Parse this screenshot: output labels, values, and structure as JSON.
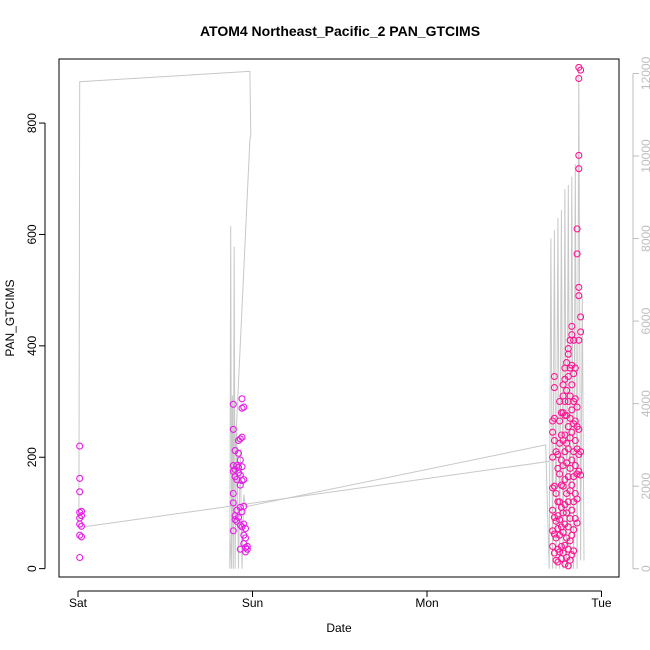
{
  "chart_data": {
    "type": "scatter",
    "title": "ATOM4 Northeast_Pacific_2 PAN_GTCIMS",
    "xlabel": "Date",
    "ylabel": "PAN_GTCIMS",
    "x_ticks": [
      "Sat",
      "Sun",
      "Mon",
      "Tue"
    ],
    "x_range_days": [
      0,
      3.08
    ],
    "ylim": [
      -15,
      915
    ],
    "y_ticks": [
      0,
      200,
      400,
      600,
      800
    ],
    "y2lim": [
      -200,
      12350
    ],
    "y2_ticks": [
      0,
      2000,
      4000,
      6000,
      8000,
      10000,
      12000
    ],
    "grid": false,
    "colors": {
      "points": "#ff1493",
      "points_alt": "#e61ee6",
      "line": "#c8c8c8"
    },
    "series": [
      {
        "kind": "points",
        "points": [
          [
            0.01,
            220
          ],
          [
            0.01,
            162
          ],
          [
            0.01,
            138
          ],
          [
            0.01,
            101
          ],
          [
            0.01,
            91
          ],
          [
            0.01,
            80
          ],
          [
            0.01,
            60
          ],
          [
            0.01,
            20
          ],
          [
            0.02,
            103
          ],
          [
            0.02,
            95
          ],
          [
            0.02,
            76
          ],
          [
            0.02,
            57
          ],
          [
            0.89,
            295
          ],
          [
            0.89,
            250
          ],
          [
            0.89,
            185
          ],
          [
            0.89,
            175
          ],
          [
            0.89,
            135
          ],
          [
            0.89,
            118
          ],
          [
            0.89,
            68
          ],
          [
            0.9,
            212
          ],
          [
            0.9,
            178
          ],
          [
            0.9,
            165
          ],
          [
            0.9,
            95
          ],
          [
            0.9,
            88
          ],
          [
            0.91,
            185
          ],
          [
            0.91,
            160
          ],
          [
            0.91,
            105
          ],
          [
            0.91,
            85
          ],
          [
            0.92,
            230
          ],
          [
            0.92,
            207
          ],
          [
            0.92,
            182
          ],
          [
            0.92,
            172
          ],
          [
            0.92,
            92
          ],
          [
            0.93,
            233
          ],
          [
            0.93,
            195
          ],
          [
            0.93,
            168
          ],
          [
            0.93,
            150
          ],
          [
            0.93,
            110
          ],
          [
            0.93,
            78
          ],
          [
            0.93,
            35
          ],
          [
            0.94,
            305
          ],
          [
            0.94,
            288
          ],
          [
            0.94,
            236
          ],
          [
            0.94,
            183
          ],
          [
            0.94,
            158
          ],
          [
            0.94,
            102
          ],
          [
            0.94,
            75
          ],
          [
            0.95,
            290
          ],
          [
            0.95,
            160
          ],
          [
            0.95,
            112
          ],
          [
            0.95,
            80
          ],
          [
            0.95,
            60
          ],
          [
            0.95,
            45
          ],
          [
            0.96,
            72
          ],
          [
            0.96,
            55
          ],
          [
            0.96,
            38
          ],
          [
            0.96,
            30
          ],
          [
            0.97,
            40
          ],
          [
            0.97,
            35
          ],
          [
            2.72,
            265
          ],
          [
            2.72,
            245
          ],
          [
            2.72,
            200
          ],
          [
            2.72,
            145
          ],
          [
            2.72,
            105
          ],
          [
            2.72,
            68
          ],
          [
            2.72,
            40
          ],
          [
            2.73,
            345
          ],
          [
            2.73,
            325
          ],
          [
            2.73,
            270
          ],
          [
            2.73,
            230
          ],
          [
            2.73,
            148
          ],
          [
            2.73,
            92
          ],
          [
            2.73,
            62
          ],
          [
            2.73,
            28
          ],
          [
            2.74,
            210
          ],
          [
            2.74,
            135
          ],
          [
            2.74,
            85
          ],
          [
            2.74,
            55
          ],
          [
            2.74,
            15
          ],
          [
            2.75,
            205
          ],
          [
            2.75,
            180
          ],
          [
            2.75,
            120
          ],
          [
            2.75,
            95
          ],
          [
            2.75,
            72
          ],
          [
            2.75,
            35
          ],
          [
            2.75,
            12
          ],
          [
            2.76,
            300
          ],
          [
            2.76,
            265
          ],
          [
            2.76,
            225
          ],
          [
            2.76,
            170
          ],
          [
            2.76,
            120
          ],
          [
            2.76,
            88
          ],
          [
            2.76,
            60
          ],
          [
            2.76,
            30
          ],
          [
            2.77,
            280
          ],
          [
            2.77,
            240
          ],
          [
            2.77,
            195
          ],
          [
            2.77,
            150
          ],
          [
            2.77,
            110
          ],
          [
            2.77,
            75
          ],
          [
            2.77,
            40
          ],
          [
            2.77,
            18
          ],
          [
            2.78,
            330
          ],
          [
            2.78,
            310
          ],
          [
            2.78,
            280
          ],
          [
            2.78,
            230
          ],
          [
            2.78,
            185
          ],
          [
            2.78,
            148
          ],
          [
            2.78,
            100
          ],
          [
            2.78,
            65
          ],
          [
            2.78,
            28
          ],
          [
            2.79,
            360
          ],
          [
            2.79,
            340
          ],
          [
            2.79,
            300
          ],
          [
            2.79,
            275
          ],
          [
            2.79,
            240
          ],
          [
            2.79,
            210
          ],
          [
            2.79,
            160
          ],
          [
            2.79,
            115
          ],
          [
            2.79,
            80
          ],
          [
            2.79,
            42
          ],
          [
            2.79,
            8
          ],
          [
            2.8,
            370
          ],
          [
            2.8,
            320
          ],
          [
            2.8,
            275
          ],
          [
            2.8,
            225
          ],
          [
            2.8,
            190
          ],
          [
            2.8,
            135
          ],
          [
            2.8,
            100
          ],
          [
            2.8,
            55
          ],
          [
            2.8,
            20
          ],
          [
            2.81,
            395
          ],
          [
            2.81,
            385
          ],
          [
            2.81,
            345
          ],
          [
            2.81,
            300
          ],
          [
            2.81,
            255
          ],
          [
            2.81,
            215
          ],
          [
            2.81,
            165
          ],
          [
            2.81,
            120
          ],
          [
            2.81,
            75
          ],
          [
            2.81,
            35
          ],
          [
            2.81,
            5
          ],
          [
            2.82,
            410
          ],
          [
            2.82,
            360
          ],
          [
            2.82,
            310
          ],
          [
            2.82,
            270
          ],
          [
            2.82,
            235
          ],
          [
            2.82,
            180
          ],
          [
            2.82,
            140
          ],
          [
            2.82,
            90
          ],
          [
            2.82,
            50
          ],
          [
            2.82,
            15
          ],
          [
            2.83,
            435
          ],
          [
            2.83,
            420
          ],
          [
            2.83,
            365
          ],
          [
            2.83,
            330
          ],
          [
            2.83,
            285
          ],
          [
            2.83,
            245
          ],
          [
            2.83,
            195
          ],
          [
            2.83,
            150
          ],
          [
            2.83,
            105
          ],
          [
            2.83,
            60
          ],
          [
            2.83,
            25
          ],
          [
            2.84,
            410
          ],
          [
            2.84,
            350
          ],
          [
            2.84,
            300
          ],
          [
            2.84,
            260
          ],
          [
            2.84,
            210
          ],
          [
            2.84,
            165
          ],
          [
            2.84,
            120
          ],
          [
            2.84,
            70
          ],
          [
            2.84,
            32
          ],
          [
            2.85,
            360
          ],
          [
            2.85,
            305
          ],
          [
            2.85,
            265
          ],
          [
            2.85,
            230
          ],
          [
            2.85,
            185
          ],
          [
            2.85,
            135
          ],
          [
            2.85,
            90
          ],
          [
            2.86,
            610
          ],
          [
            2.86,
            565
          ],
          [
            2.86,
            290
          ],
          [
            2.86,
            255
          ],
          [
            2.86,
            215
          ],
          [
            2.86,
            170
          ],
          [
            2.86,
            125
          ],
          [
            2.86,
            82
          ],
          [
            2.87,
            900
          ],
          [
            2.87,
            880
          ],
          [
            2.87,
            742
          ],
          [
            2.87,
            718
          ],
          [
            2.87,
            505
          ],
          [
            2.87,
            490
          ],
          [
            2.87,
            410
          ],
          [
            2.87,
            250
          ],
          [
            2.87,
            205
          ],
          [
            2.87,
            175
          ],
          [
            2.88,
            895
          ],
          [
            2.88,
            452
          ],
          [
            2.88,
            425
          ],
          [
            2.88,
            210
          ],
          [
            2.88,
            168
          ]
        ]
      },
      {
        "kind": "line",
        "axis": "right",
        "points": [
          [
            0.005,
            1000
          ],
          [
            0.01,
            11800
          ],
          [
            0.98,
            12050
          ],
          [
            0.985,
            12050
          ],
          [
            0.99,
            10500
          ],
          [
            0.985,
            10400
          ],
          [
            0.87,
            0
          ],
          [
            0.875,
            8300
          ],
          [
            0.88,
            0
          ],
          [
            0.885,
            4200
          ],
          [
            0.89,
            0
          ],
          [
            0.895,
            7800
          ],
          [
            0.9,
            0
          ],
          [
            0.91,
            3300
          ],
          [
            0.92,
            0
          ],
          [
            0.93,
            2900
          ],
          [
            0.94,
            0
          ],
          [
            0.95,
            1800
          ],
          [
            0.96,
            1500
          ],
          [
            2.68,
            3000
          ],
          [
            2.7,
            0
          ],
          [
            2.71,
            8000
          ],
          [
            2.72,
            0
          ],
          [
            2.73,
            8200
          ],
          [
            2.74,
            0
          ],
          [
            2.75,
            8500
          ],
          [
            2.76,
            0
          ],
          [
            2.77,
            8700
          ],
          [
            2.78,
            0
          ],
          [
            2.79,
            9200
          ],
          [
            2.8,
            0
          ],
          [
            2.81,
            9300
          ],
          [
            2.82,
            0
          ],
          [
            2.83,
            9500
          ],
          [
            2.84,
            0
          ],
          [
            2.85,
            9800
          ],
          [
            2.86,
            0
          ],
          [
            2.87,
            12050
          ],
          [
            2.88,
            200
          ],
          [
            2.89,
            6600
          ],
          [
            2.9,
            200
          ]
        ]
      },
      {
        "kind": "line",
        "axis": "right",
        "points": [
          [
            0.005,
            1000
          ],
          [
            2.7,
            2600
          ]
        ]
      }
    ]
  }
}
